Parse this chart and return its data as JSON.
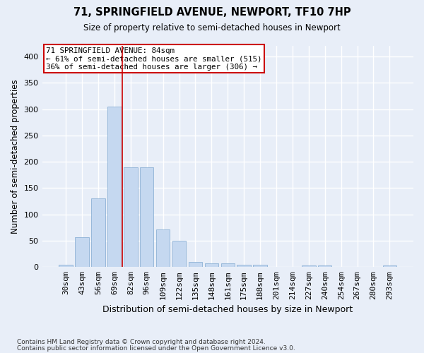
{
  "title": "71, SPRINGFIELD AVENUE, NEWPORT, TF10 7HP",
  "subtitle": "Size of property relative to semi-detached houses in Newport",
  "xlabel": "Distribution of semi-detached houses by size in Newport",
  "ylabel": "Number of semi-detached properties",
  "footnote1": "Contains HM Land Registry data © Crown copyright and database right 2024.",
  "footnote2": "Contains public sector information licensed under the Open Government Licence v3.0.",
  "categories": [
    "30sqm",
    "43sqm",
    "56sqm",
    "69sqm",
    "82sqm",
    "96sqm",
    "109sqm",
    "122sqm",
    "135sqm",
    "148sqm",
    "161sqm",
    "175sqm",
    "188sqm",
    "201sqm",
    "214sqm",
    "227sqm",
    "240sqm",
    "254sqm",
    "267sqm",
    "280sqm",
    "293sqm"
  ],
  "values": [
    5,
    57,
    130,
    305,
    190,
    190,
    72,
    50,
    10,
    7,
    7,
    5,
    5,
    0,
    0,
    3,
    3,
    0,
    0,
    0,
    3
  ],
  "bar_color": "#c5d8f0",
  "bar_edge_color": "#7fa8d0",
  "background_color": "#e8eef8",
  "grid_color": "#ffffff",
  "red_line_index": 3,
  "annotation_title": "71 SPRINGFIELD AVENUE: 84sqm",
  "annotation_line1": "← 61% of semi-detached houses are smaller (515)",
  "annotation_line2": "36% of semi-detached houses are larger (306) →",
  "ylim": [
    0,
    420
  ],
  "yticks": [
    0,
    50,
    100,
    150,
    200,
    250,
    300,
    350,
    400
  ]
}
